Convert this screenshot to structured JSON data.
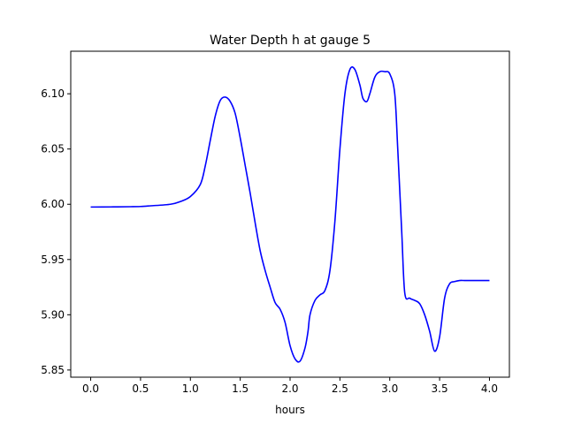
{
  "chart_data": {
    "type": "line",
    "title": "Water Depth h at gauge 5",
    "xlabel": "hours",
    "ylabel": "",
    "xlim": [
      -0.2,
      4.2
    ],
    "ylim": [
      5.8435,
      6.1385
    ],
    "x_ticks": [
      0.0,
      0.5,
      1.0,
      1.5,
      2.0,
      2.5,
      3.0,
      3.5,
      4.0
    ],
    "x_tick_labels": [
      "0.0",
      "0.5",
      "1.0",
      "1.5",
      "2.0",
      "2.5",
      "3.0",
      "3.5",
      "4.0"
    ],
    "y_ticks": [
      5.85,
      5.9,
      5.95,
      6.0,
      6.05,
      6.1
    ],
    "y_tick_labels": [
      "5.85",
      "5.90",
      "5.95",
      "6.00",
      "6.05",
      "6.10"
    ],
    "grid": false,
    "legend": "none",
    "series": [
      {
        "color": "#0000ff",
        "x": [
          0.0,
          0.2,
          0.4,
          0.5,
          0.6,
          0.8,
          0.9,
          1.0,
          1.1,
          1.15,
          1.2,
          1.25,
          1.3,
          1.35,
          1.4,
          1.45,
          1.5,
          1.55,
          1.6,
          1.65,
          1.7,
          1.75,
          1.8,
          1.85,
          1.9,
          1.95,
          2.0,
          2.05,
          2.1,
          2.15,
          2.18,
          2.2,
          2.25,
          2.3,
          2.35,
          2.4,
          2.45,
          2.5,
          2.55,
          2.6,
          2.65,
          2.7,
          2.73,
          2.77,
          2.8,
          2.85,
          2.9,
          2.95,
          3.0,
          3.05,
          3.08,
          3.12,
          3.15,
          3.2,
          3.25,
          3.3,
          3.35,
          3.4,
          3.45,
          3.5,
          3.55,
          3.6,
          3.65,
          3.7,
          3.75,
          3.8,
          3.85,
          3.9,
          3.95,
          4.0
        ],
        "y": [
          5.9975,
          5.9976,
          5.9978,
          5.998,
          5.9986,
          6.0,
          6.0025,
          6.007,
          6.018,
          6.035,
          6.058,
          6.08,
          6.094,
          6.097,
          6.093,
          6.082,
          6.06,
          6.035,
          6.01,
          5.983,
          5.958,
          5.94,
          5.925,
          5.911,
          5.905,
          5.893,
          5.872,
          5.86,
          5.858,
          5.87,
          5.885,
          5.9,
          5.913,
          5.918,
          5.922,
          5.94,
          5.985,
          6.05,
          6.1,
          6.122,
          6.122,
          6.108,
          6.096,
          6.093,
          6.1,
          6.115,
          6.12,
          6.12,
          6.118,
          6.1,
          6.05,
          5.975,
          5.92,
          5.915,
          5.913,
          5.91,
          5.9,
          5.885,
          5.867,
          5.88,
          5.915,
          5.928,
          5.93,
          5.931,
          5.931,
          5.931,
          5.931,
          5.931,
          5.931,
          5.931
        ]
      }
    ]
  }
}
